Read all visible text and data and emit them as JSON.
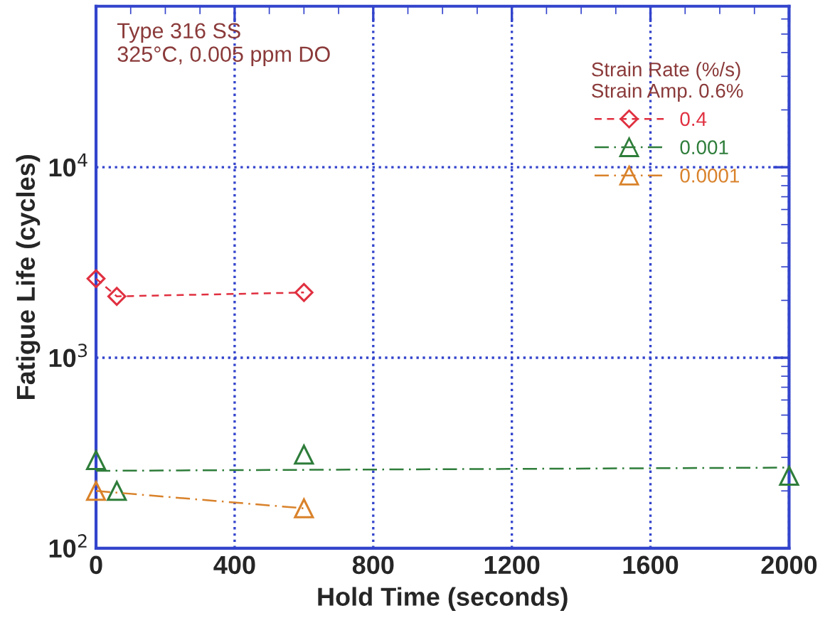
{
  "chart_data": {
    "type": "line",
    "xlabel": "Hold Time (seconds)",
    "ylabel": "Fatigue Life (cycles)",
    "log": "y",
    "xlim": [
      0,
      2000
    ],
    "xticks": [
      0,
      400,
      800,
      1200,
      1600,
      2000
    ],
    "ylim": [
      100,
      70000
    ],
    "yticks": [
      {
        "value": 100,
        "label": "10$^{2}$"
      },
      {
        "value": 1000,
        "label": "10$^{3}$"
      },
      {
        "value": 10000,
        "label": "10$^{4}$"
      }
    ],
    "grid": true,
    "legend": "top right",
    "legend_title": "Strain Rate (%/s)\nStrain Amp. 0.6%",
    "annotations": [
      "Type 316 SS\n325°C, 0.005 ppm DO"
    ],
    "series": [
      {
        "name": "0.4",
        "color": "#e03040",
        "marker": "diamond",
        "line_style": "dashed",
        "x": [
          0,
          60,
          600
        ],
        "values": [
          2600,
          2100,
          2200
        ]
      },
      {
        "name": "0.001",
        "type": "scatter",
        "color": "#2e7d3a",
        "marker": "triangle",
        "x": [
          0,
          60,
          600,
          2000
        ],
        "values": [
          290,
          200,
          310,
          240
        ]
      },
      {
        "color": "#2e7d3a",
        "marker": "none",
        "line_style": "dashdot",
        "x": [
          0,
          2000
        ],
        "values": [
          255,
          265
        ]
      },
      {
        "name": "0.0001",
        "color": "#d9822b",
        "marker": "triangle",
        "line_style": "dashdot",
        "x": [
          0,
          600
        ],
        "values": [
          200,
          162
        ]
      }
    ]
  }
}
